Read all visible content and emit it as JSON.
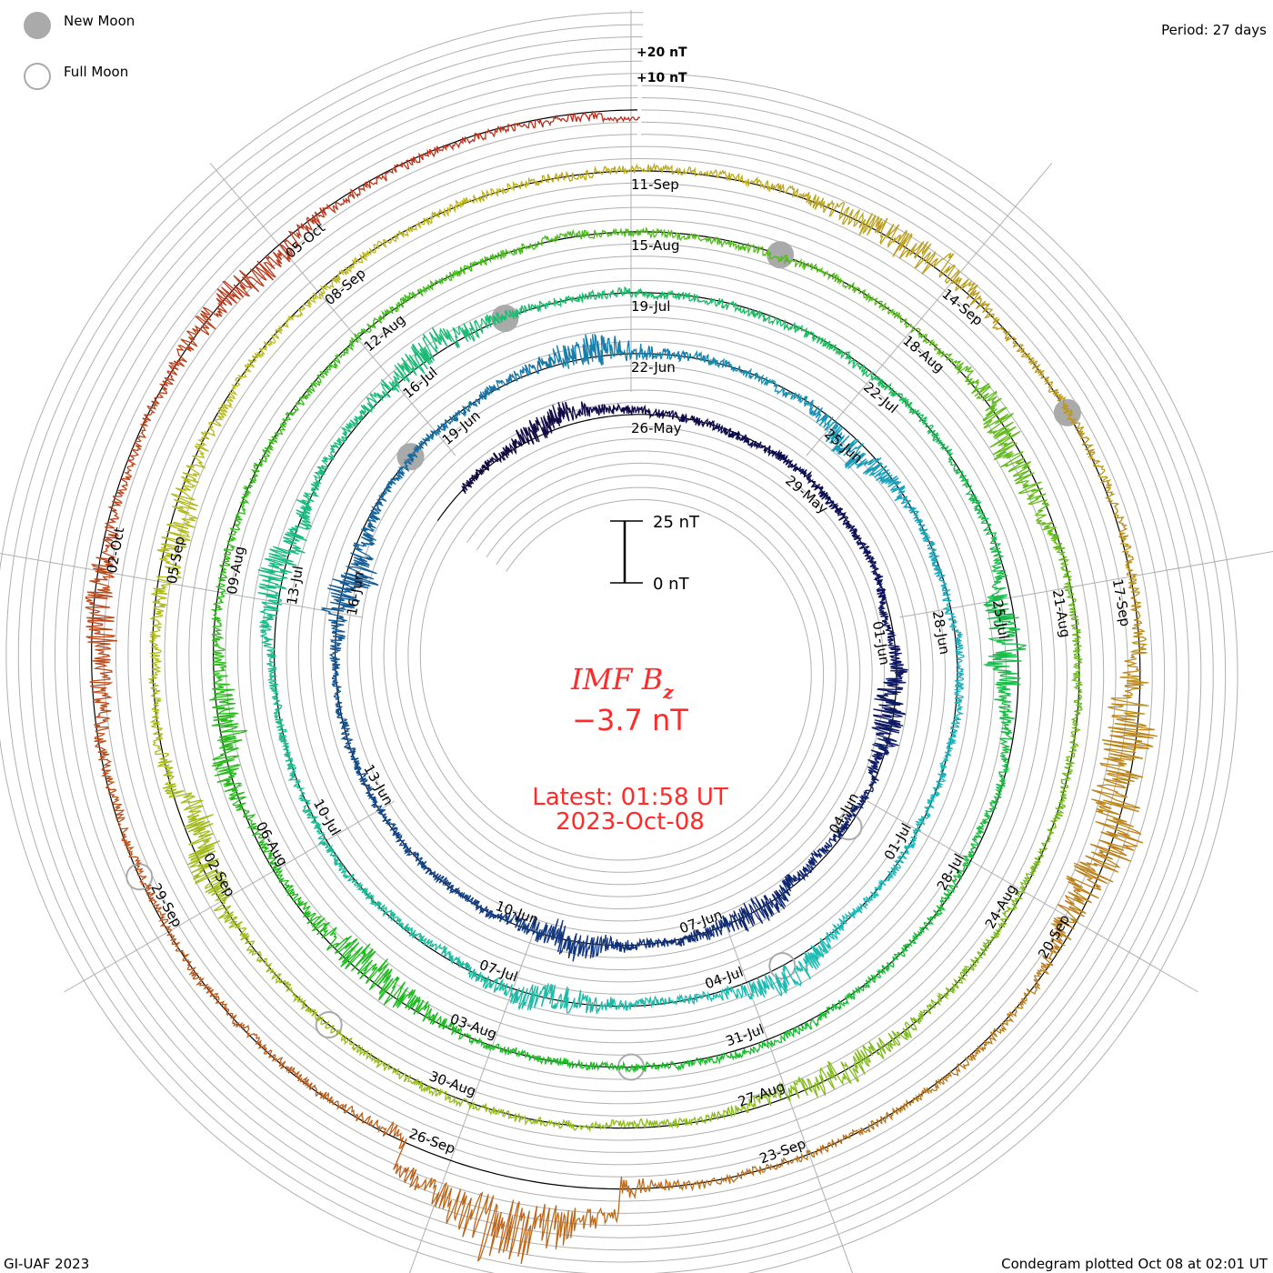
{
  "legend": {
    "new_moon": "New Moon",
    "full_moon": "Full Moon"
  },
  "period_label": "Period: 27 days",
  "footer_left": "GI-UAF 2023",
  "footer_right": "Condegram plotted Oct 08 at 02:01 UT",
  "center": {
    "title": "IMF B",
    "title_sub": "z",
    "value": "−3.7 nT",
    "latest": "Latest: 01:58 UT",
    "latest_date": "2023-Oct-08"
  },
  "scale_bar": {
    "top_label": "25 nT",
    "bottom_label": "0 nT"
  },
  "outer_labels": [
    "+20 nT",
    "+10 nT"
  ],
  "colors": {
    "center_text": "#ff2a2a",
    "grid": "#b0b0b0",
    "zero_line": "#000000",
    "moon": "#aaaaaa"
  },
  "chart_data": {
    "type": "line",
    "subtype": "condegram-spiral",
    "title": "IMF Bz",
    "units": "nT",
    "period_days": 27,
    "reference_date": "2023-05-26",
    "start_date": "2023-05-22",
    "end_date": "2023-10-08",
    "latest_value": -3.7,
    "grid_step_nT": 5,
    "ring_spacing_nT": 25,
    "date_labels": [
      [
        "26-May",
        "29-May",
        "01-Jun",
        "04-Jun",
        "07-Jun",
        "10-Jun",
        "13-Jun",
        "16-Jun",
        "19-Jun"
      ],
      [
        "22-Jun",
        "25-Jun",
        "28-Jun",
        "01-Jul",
        "04-Jul",
        "07-Jul",
        "10-Jul",
        "13-Jul",
        "16-Jul"
      ],
      [
        "19-Jul",
        "22-Jul",
        "25-Jul",
        "28-Jul",
        "31-Jul",
        "03-Aug",
        "06-Aug",
        "09-Aug",
        "12-Aug"
      ],
      [
        "15-Aug",
        "18-Aug",
        "21-Aug",
        "24-Aug",
        "27-Aug",
        "30-Aug",
        "02-Sep",
        "05-Sep",
        "08-Sep"
      ],
      [
        "11-Sep",
        "14-Sep",
        "17-Sep",
        "20-Sep",
        "23-Sep",
        "26-Sep",
        "29-Sep",
        "02-Oct",
        "05-Oct"
      ]
    ],
    "new_moons": [
      "2023-06-18",
      "2023-07-17",
      "2023-08-16",
      "2023-09-15"
    ],
    "full_moons": [
      "2023-06-04",
      "2023-07-03",
      "2023-08-01",
      "2023-08-31",
      "2023-09-29"
    ],
    "baseline_noise_nT": 3,
    "disturbances": [
      {
        "date": "2023-05-24",
        "amp_nT": 6
      },
      {
        "date": "2023-06-02",
        "amp_nT": 9
      },
      {
        "date": "2023-06-06",
        "amp_nT": 7
      },
      {
        "date": "2023-06-09",
        "amp_nT": 8
      },
      {
        "date": "2023-06-16",
        "amp_nT": 10
      },
      {
        "date": "2023-06-21",
        "amp_nT": 8
      },
      {
        "date": "2023-06-25",
        "amp_nT": 7
      },
      {
        "date": "2023-07-03",
        "amp_nT": 6
      },
      {
        "date": "2023-07-06",
        "amp_nT": 7
      },
      {
        "date": "2023-07-13",
        "amp_nT": 9
      },
      {
        "date": "2023-07-16",
        "amp_nT": 8
      },
      {
        "date": "2023-07-25",
        "amp_nT": 10
      },
      {
        "date": "2023-08-04",
        "amp_nT": 10
      },
      {
        "date": "2023-08-07",
        "amp_nT": 8
      },
      {
        "date": "2023-08-19",
        "amp_nT": 9
      },
      {
        "date": "2023-08-26",
        "amp_nT": 7
      },
      {
        "date": "2023-09-02",
        "amp_nT": 9
      },
      {
        "date": "2023-09-05",
        "amp_nT": 8
      },
      {
        "date": "2023-09-13",
        "amp_nT": 9
      },
      {
        "date": "2023-09-18",
        "amp_nT": 15
      },
      {
        "date": "2023-09-19",
        "amp_nT": 12
      },
      {
        "date": "2023-09-25",
        "amp_nT": 30
      },
      {
        "date": "2023-10-01",
        "amp_nT": 8
      },
      {
        "date": "2023-10-04",
        "amp_nT": 7
      }
    ]
  }
}
